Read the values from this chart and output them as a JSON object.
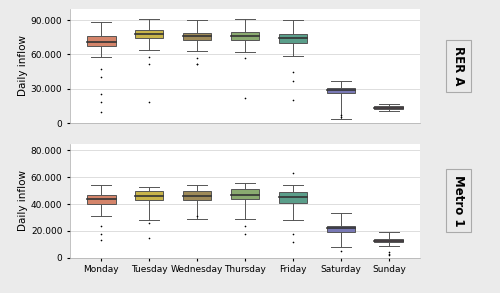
{
  "days": [
    "Monday",
    "Tuesday",
    "Wednesday",
    "Thursday",
    "Friday",
    "Saturday",
    "Sunday"
  ],
  "colors": [
    "#D4846A",
    "#C8B44A",
    "#9E8A58",
    "#8AAA70",
    "#5A9E8A",
    "#7878B4",
    "#A07888"
  ],
  "rera": {
    "whislo": [
      58000,
      64000,
      63000,
      62000,
      59000,
      3500,
      10500
    ],
    "q1": [
      67000,
      74000,
      73000,
      73000,
      70000,
      26500,
      12200
    ],
    "median": [
      71000,
      77500,
      76000,
      76500,
      74000,
      28800,
      13500
    ],
    "q3": [
      76000,
      81000,
      79000,
      80000,
      78000,
      30500,
      14500
    ],
    "whishi": [
      88000,
      91000,
      90000,
      91000,
      90000,
      37000,
      17000
    ],
    "outliers_low_vals": [
      [
        47000,
        40000,
        25000,
        18000,
        10000
      ],
      [
        58000,
        52000,
        18000
      ],
      [
        57000,
        52000,
        52000
      ],
      [
        57000,
        22000
      ],
      [
        45000,
        37000,
        20000
      ],
      [
        5000,
        7000
      ],
      []
    ],
    "outliers_high_vals": [
      [],
      [],
      [],
      [],
      [],
      [],
      []
    ],
    "ylim": [
      0,
      100000
    ],
    "yticks": [
      0,
      30000,
      60000,
      90000
    ],
    "yticklabels": [
      "0",
      "30.000",
      "60.000",
      "90.000"
    ],
    "label": "RER A"
  },
  "metro": {
    "whislo": [
      31000,
      28000,
      29000,
      29000,
      28000,
      8000,
      8500
    ],
    "q1": [
      40000,
      43000,
      43000,
      44000,
      41000,
      19500,
      11500
    ],
    "median": [
      43500,
      46000,
      46000,
      47000,
      45000,
      22000,
      12500
    ],
    "q3": [
      47000,
      50000,
      49500,
      51000,
      49000,
      24000,
      13800
    ],
    "whishi": [
      54000,
      53000,
      54000,
      56000,
      54000,
      33000,
      19000
    ],
    "outliers_low_vals": [
      [
        24000,
        18000,
        13000
      ],
      [
        26000,
        15000
      ],
      [
        31000
      ],
      [
        24000,
        18000
      ],
      [
        18000,
        12000
      ],
      [
        5000
      ],
      [
        4000,
        3000,
        2000
      ]
    ],
    "outliers_high_vals": [
      [],
      [],
      [],
      [],
      [
        63000
      ],
      [],
      []
    ],
    "ylim": [
      0,
      85000
    ],
    "yticks": [
      0,
      20000,
      40000,
      60000,
      80000
    ],
    "yticklabels": [
      "0",
      "20.000",
      "40.000",
      "60.000",
      "80.000"
    ],
    "label": "Metro 1"
  },
  "ylabel": "Daily inflow",
  "background_color": "#ebebeb",
  "plot_background": "#ffffff",
  "grid_color": "#d0d0d0",
  "fontsize_ticks": 6.5,
  "fontsize_label": 7.5,
  "fontsize_side_label": 8.5
}
